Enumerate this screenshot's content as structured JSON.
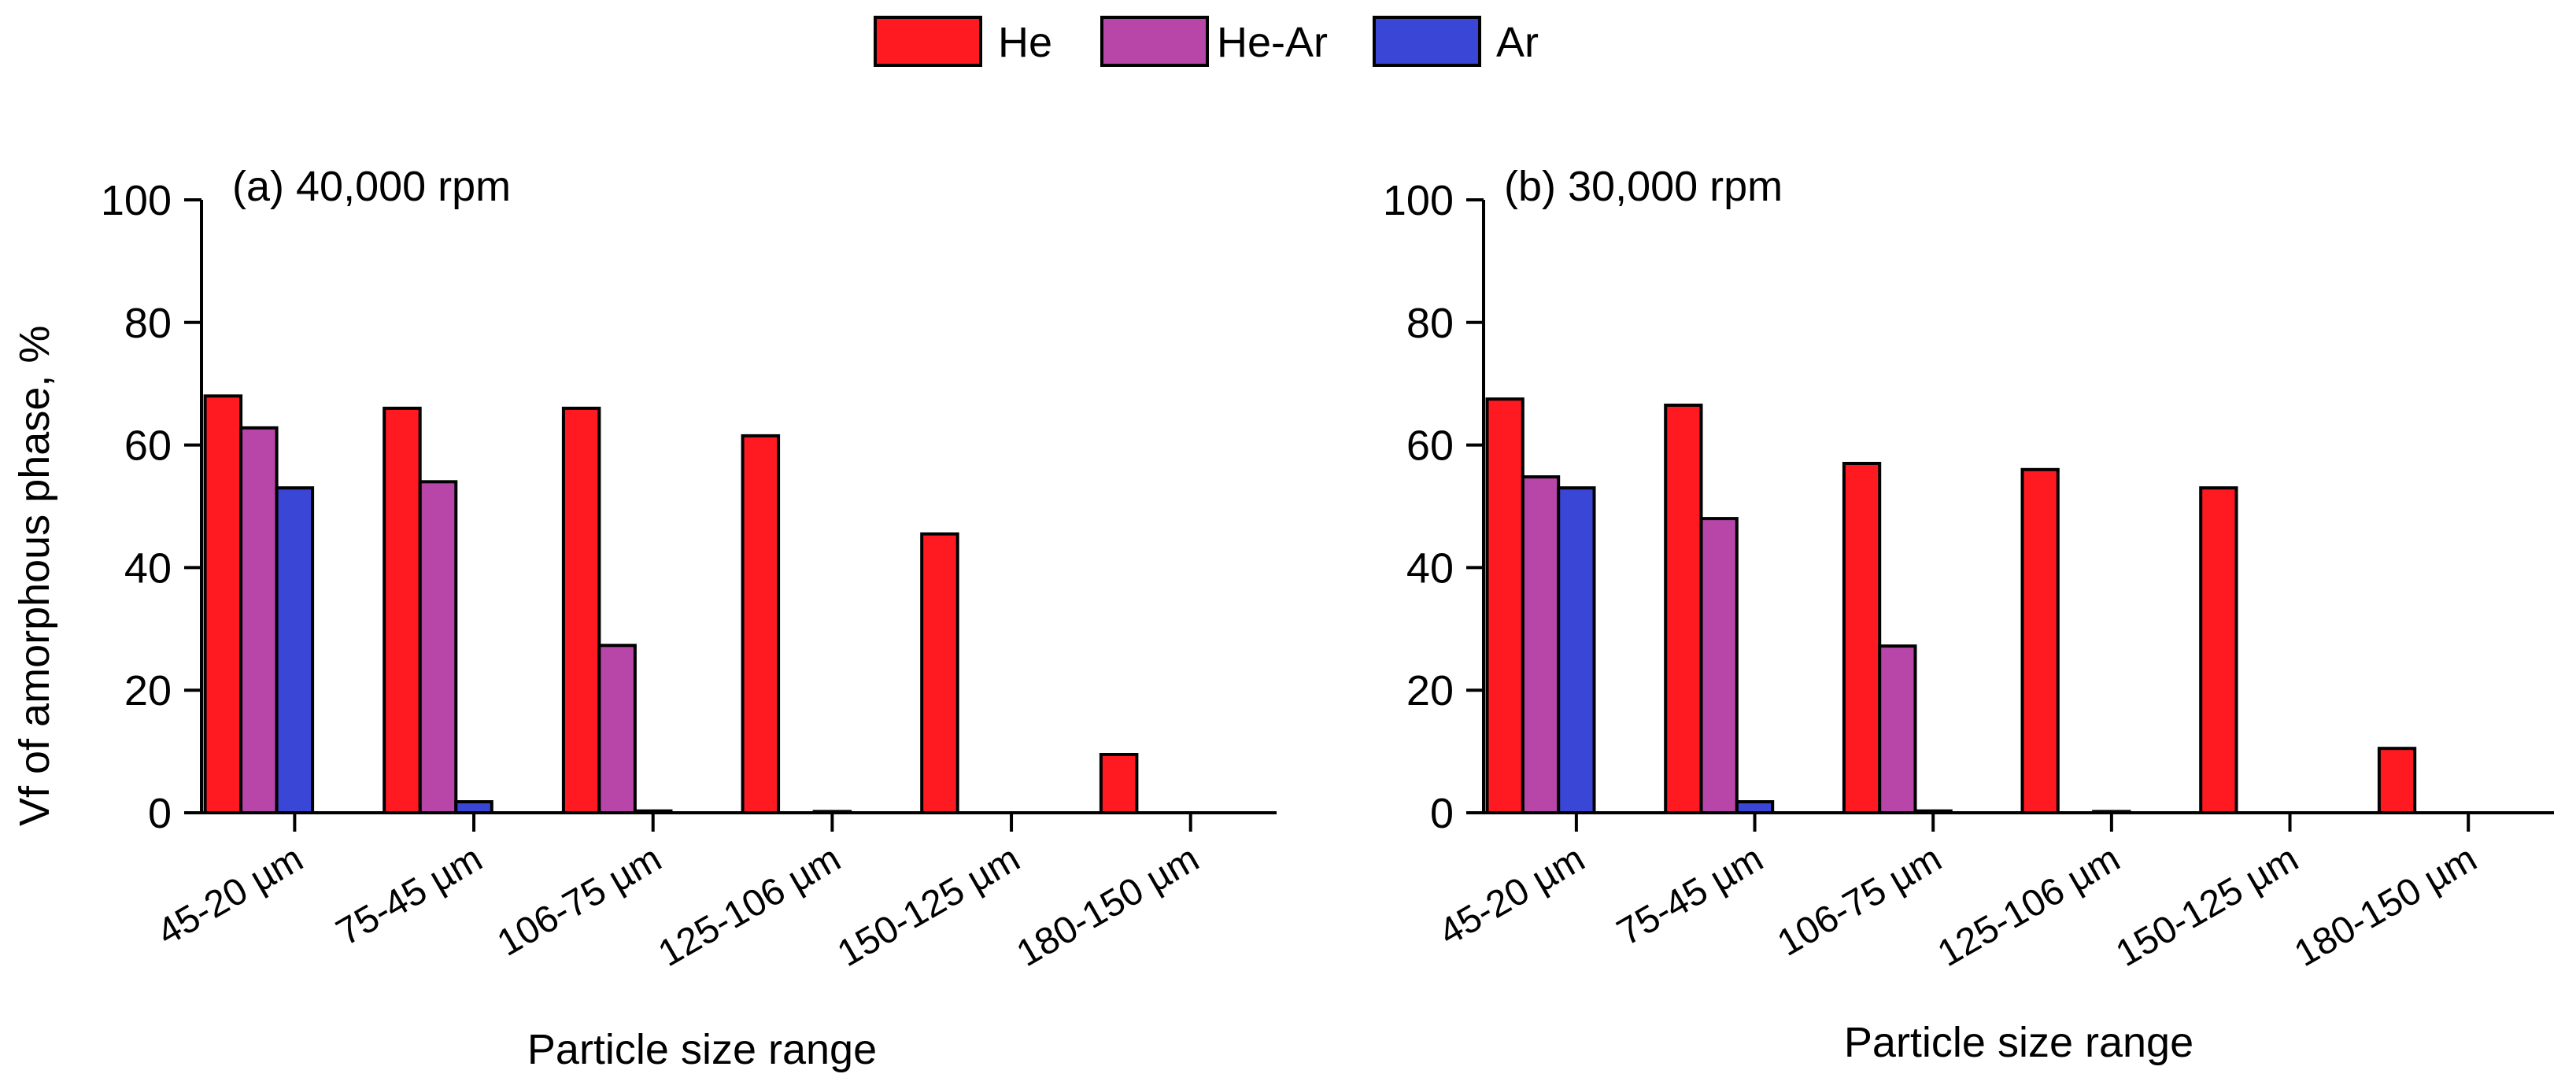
{
  "legend": [
    {
      "name": "He",
      "color": "#ff1a22"
    },
    {
      "name": "He-Ar",
      "color": "#b846a8"
    },
    {
      "name": "Ar",
      "color": "#3a46d6"
    }
  ],
  "y_axis_label": "Vf of amorphous phase, %",
  "chart_data": [
    {
      "type": "bar",
      "title": "(a)  40,000 rpm",
      "xlabel": "Particle size range",
      "ylabel": "Vf of amorphous phase, %",
      "ylim": [
        0,
        100
      ],
      "yticks": [
        0,
        20,
        40,
        60,
        80,
        100
      ],
      "grid": false,
      "legend_position": "top-center",
      "categories": [
        "45-20 µm",
        "75-45 µm",
        "106-75 µm",
        "125-106 µm",
        "150-125 µm",
        "180-150 µm"
      ],
      "series": [
        {
          "name": "He",
          "color": "#ff1a22",
          "values": [
            68,
            66,
            66,
            61.5,
            45.5,
            9.5
          ]
        },
        {
          "name": "He-Ar",
          "color": "#b846a8",
          "values": [
            62.8,
            54,
            27.3,
            0,
            0,
            0
          ]
        },
        {
          "name": "Ar",
          "color": "#3a46d6",
          "values": [
            53,
            1.8,
            0.3,
            0.2,
            0,
            0
          ]
        }
      ]
    },
    {
      "type": "bar",
      "title": "(b)  30,000 rpm",
      "xlabel": "Particle size range",
      "ylabel": "",
      "ylim": [
        0,
        100
      ],
      "yticks": [
        0,
        20,
        40,
        60,
        80,
        100
      ],
      "grid": false,
      "legend_position": "top-center",
      "categories": [
        "45-20 µm",
        "75-45 µm",
        "106-75 µm",
        "125-106 µm",
        "150-125 µm",
        "180-150 µm"
      ],
      "series": [
        {
          "name": "He",
          "color": "#ff1a22",
          "values": [
            67.5,
            66.5,
            57,
            56,
            53,
            10.5
          ]
        },
        {
          "name": "He-Ar",
          "color": "#b846a8",
          "values": [
            54.8,
            48,
            27.2,
            0,
            0,
            0
          ]
        },
        {
          "name": "Ar",
          "color": "#3a46d6",
          "values": [
            53,
            1.8,
            0.3,
            0.2,
            0,
            0
          ]
        }
      ]
    }
  ]
}
